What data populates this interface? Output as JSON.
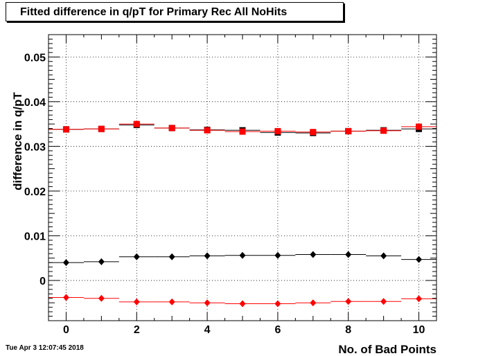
{
  "title": "Fitted difference in q/pT for Primary Rec All NoHits",
  "timestamp": "Tue Apr  3 12:07:45 2018",
  "chart_data": {
    "type": "scatter",
    "title": "Fitted difference in q/pT for Primary Rec All NoHits",
    "xlabel": "No. of Bad Points",
    "ylabel": "difference in q/pT",
    "xlim": [
      -0.5,
      10.5
    ],
    "ylim": [
      -0.009,
      0.055
    ],
    "grid": true,
    "x": [
      0,
      1,
      2,
      3,
      4,
      5,
      6,
      7,
      8,
      9,
      10
    ],
    "x_ticks": [
      0,
      2,
      4,
      6,
      8,
      10
    ],
    "x_tick_labels": [
      "0",
      "2",
      "4",
      "6",
      "8",
      "10"
    ],
    "y_ticks": [
      0,
      0.01,
      0.02,
      0.03,
      0.04,
      0.05
    ],
    "y_tick_labels": [
      "0",
      "0.01",
      "0.02",
      "0.03",
      "0.04",
      "0.05"
    ],
    "series": [
      {
        "marker": "square",
        "color": "#000000",
        "values": [
          0.0338,
          0.0339,
          0.0348,
          0.0341,
          0.0337,
          0.0336,
          0.0331,
          0.033,
          0.0334,
          0.0336,
          0.0339
        ]
      },
      {
        "marker": "square",
        "color": "#ff0000",
        "values": [
          0.0338,
          0.0339,
          0.035,
          0.0341,
          0.0336,
          0.0333,
          0.0334,
          0.0332,
          0.0334,
          0.0335,
          0.0344
        ]
      },
      {
        "marker": "diamond",
        "color": "#000000",
        "values": [
          0.004,
          0.0042,
          0.0053,
          0.0053,
          0.0055,
          0.0056,
          0.0056,
          0.0058,
          0.0058,
          0.0055,
          0.0047
        ]
      },
      {
        "marker": "diamond",
        "color": "#ff0000",
        "values": [
          -0.0038,
          -0.004,
          -0.0048,
          -0.0048,
          -0.005,
          -0.0052,
          -0.0052,
          -0.005,
          -0.0047,
          -0.0047,
          -0.0041
        ]
      }
    ]
  }
}
